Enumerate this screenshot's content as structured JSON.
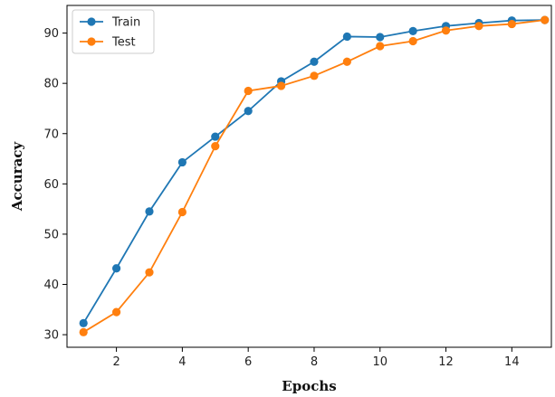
{
  "chart_data": {
    "type": "line",
    "title": "",
    "xlabel": "Epochs",
    "ylabel": "Accuracy",
    "x": [
      1,
      2,
      3,
      4,
      5,
      6,
      7,
      8,
      9,
      10,
      11,
      12,
      13,
      14,
      15
    ],
    "xlim": [
      0.5,
      15.2
    ],
    "ylim": [
      27.5,
      95.5
    ],
    "xticks": [
      2,
      4,
      6,
      8,
      10,
      12,
      14
    ],
    "yticks": [
      30,
      40,
      50,
      60,
      70,
      80,
      90
    ],
    "grid": false,
    "legend_position": "top-left",
    "series": [
      {
        "name": "Train",
        "color": "#1f77b4",
        "values": [
          32.3,
          43.2,
          54.5,
          64.3,
          69.4,
          74.5,
          80.4,
          84.3,
          89.3,
          89.2,
          90.4,
          91.4,
          92.0,
          92.5,
          92.6
        ]
      },
      {
        "name": "Test",
        "color": "#ff7f0e",
        "values": [
          30.5,
          34.5,
          42.4,
          54.4,
          67.5,
          78.5,
          79.5,
          81.5,
          84.3,
          87.4,
          88.4,
          90.5,
          91.4,
          91.8,
          92.6
        ]
      }
    ]
  }
}
